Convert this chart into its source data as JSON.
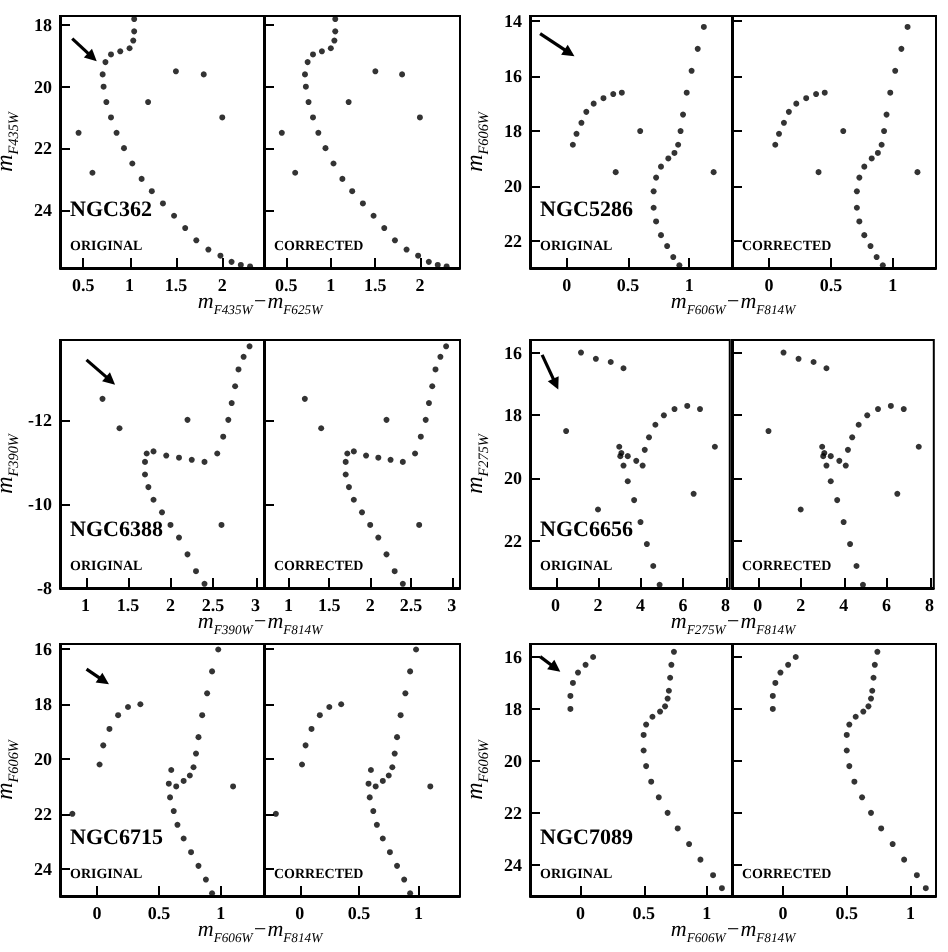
{
  "chart_data": [
    {
      "type": "scatter",
      "xlabel": "m$_{F435W}$−m$_{F625W}$",
      "ylabel": "m$_{F435W}$",
      "annotations": [
        "NGC362",
        "ORIGINAL"
      ],
      "marker": "circle",
      "xlim": [
        0.25,
        2.45
      ],
      "ylim": [
        25.9,
        17.7
      ],
      "xticks": [
        0.5,
        1,
        1.5,
        2
      ],
      "yticks": [
        18,
        20,
        22,
        24
      ],
      "series": [
        {
          "color": "#000000",
          "x": [
            1.05,
            1.05,
            1.04,
            1.0,
            0.9,
            0.8,
            0.74,
            0.71,
            0.72,
            0.75,
            0.8,
            0.86,
            0.94,
            1.03,
            1.13,
            1.24,
            1.36,
            1.48,
            1.6,
            1.72,
            1.85,
            1.98,
            2.1,
            2.2,
            2.3,
            1.5,
            1.8,
            0.45,
            0.6,
            1.2,
            2.0
          ],
          "values": [
            17.8,
            18.2,
            18.5,
            18.75,
            18.85,
            18.95,
            19.2,
            19.6,
            20.0,
            20.5,
            21.0,
            21.5,
            22.0,
            22.5,
            23.0,
            23.4,
            23.8,
            24.2,
            24.6,
            25.0,
            25.3,
            25.5,
            25.7,
            25.8,
            25.85,
            19.5,
            19.6,
            21.5,
            22.8,
            20.5,
            21.0
          ]
        }
      ]
    },
    {
      "type": "scatter",
      "annotations": [
        "CORRECTED"
      ],
      "marker": "circle",
      "tick_labels": "x",
      "xlim": [
        0.25,
        2.45
      ],
      "ylim": [
        25.9,
        17.7
      ],
      "xticks": [
        0.5,
        1,
        1.5,
        2
      ],
      "yticks": [
        18,
        20,
        22,
        24
      ],
      "series": [
        {
          "color": "#000000",
          "x": [
            1.05,
            1.05,
            1.04,
            1.0,
            0.9,
            0.8,
            0.74,
            0.71,
            0.72,
            0.75,
            0.8,
            0.86,
            0.94,
            1.03,
            1.13,
            1.24,
            1.36,
            1.48,
            1.6,
            1.72,
            1.85,
            1.98,
            2.1,
            2.2,
            2.3,
            1.5,
            1.8,
            0.45,
            0.6,
            1.2,
            2.0
          ],
          "values": [
            17.8,
            18.2,
            18.5,
            18.75,
            18.85,
            18.95,
            19.2,
            19.6,
            20.0,
            20.5,
            21.0,
            21.5,
            22.0,
            22.5,
            23.0,
            23.4,
            23.8,
            24.2,
            24.6,
            25.0,
            25.3,
            25.5,
            25.7,
            25.8,
            25.85,
            19.5,
            19.6,
            21.5,
            22.8,
            20.5,
            21.0
          ]
        }
      ]
    },
    {
      "type": "scatter",
      "xlabel": "m$_{F606W}$−m$_{F814W}$",
      "ylabel": "m$_{F606W}$",
      "annotations": [
        "NGC5286",
        "ORIGINAL"
      ],
      "marker": "circle",
      "xlim": [
        -0.3,
        1.35
      ],
      "ylim": [
        23,
        13.8
      ],
      "xticks": [
        0,
        0.5,
        1
      ],
      "yticks": [
        14,
        16,
        18,
        20,
        22
      ],
      "series": [
        {
          "color": "#000000",
          "x": [
            1.12,
            1.07,
            1.02,
            0.98,
            0.95,
            0.93,
            0.91,
            0.88,
            0.83,
            0.77,
            0.73,
            0.71,
            0.71,
            0.73,
            0.77,
            0.82,
            0.87,
            0.92,
            0.45,
            0.38,
            0.3,
            0.22,
            0.16,
            0.12,
            0.08,
            0.05,
            0.6,
            1.2,
            0.4
          ],
          "values": [
            14.2,
            15.0,
            15.8,
            16.6,
            17.4,
            18.0,
            18.5,
            18.8,
            19.0,
            19.3,
            19.7,
            20.2,
            20.8,
            21.3,
            21.8,
            22.2,
            22.6,
            22.9,
            16.6,
            16.65,
            16.8,
            17.0,
            17.3,
            17.7,
            18.1,
            18.5,
            18.0,
            19.5,
            19.5
          ]
        }
      ]
    },
    {
      "type": "scatter",
      "annotations": [
        "CORRECTED"
      ],
      "marker": "circle",
      "tick_labels": "x",
      "xlim": [
        -0.3,
        1.35
      ],
      "ylim": [
        23,
        13.8
      ],
      "xticks": [
        0,
        0.5,
        1
      ],
      "yticks": [
        14,
        16,
        18,
        20,
        22
      ],
      "series": [
        {
          "color": "#000000",
          "x": [
            1.12,
            1.07,
            1.02,
            0.98,
            0.95,
            0.93,
            0.91,
            0.88,
            0.83,
            0.77,
            0.73,
            0.71,
            0.71,
            0.73,
            0.77,
            0.82,
            0.87,
            0.92,
            0.45,
            0.38,
            0.3,
            0.22,
            0.16,
            0.12,
            0.08,
            0.05,
            0.6,
            1.2,
            0.4
          ],
          "values": [
            14.2,
            15.0,
            15.8,
            16.6,
            17.4,
            18.0,
            18.5,
            18.8,
            19.0,
            19.3,
            19.7,
            20.2,
            20.8,
            21.3,
            21.8,
            22.2,
            22.6,
            22.9,
            16.6,
            16.65,
            16.8,
            17.0,
            17.3,
            17.7,
            18.1,
            18.5,
            18.0,
            19.5,
            19.5
          ]
        }
      ]
    },
    {
      "type": "scatter",
      "xlabel": "m$_{F390W}$−m$_{F814W}$",
      "ylabel": "m$_{F390W}$",
      "annotations": [
        "NGC6388",
        "ORIGINAL"
      ],
      "marker": "circle",
      "xlim": [
        0.7,
        3.1
      ],
      "ylim": [
        -8,
        -13.9
      ],
      "xticks": [
        1,
        1.5,
        2,
        2.5,
        3
      ],
      "yticks": [
        -12,
        -10,
        -8
      ],
      "series": [
        {
          "color": "#000000",
          "x": [
            2.4,
            2.3,
            2.2,
            2.1,
            2.0,
            1.9,
            1.8,
            1.74,
            1.7,
            1.7,
            1.72,
            1.8,
            1.95,
            2.1,
            2.25,
            2.4,
            2.55,
            2.62,
            2.68,
            2.72,
            2.76,
            2.8,
            2.86,
            2.93,
            1.4,
            2.6,
            1.2,
            2.2
          ],
          "values": [
            -8.1,
            -8.4,
            -8.8,
            -9.2,
            -9.5,
            -9.8,
            -10.1,
            -10.4,
            -10.7,
            -11.0,
            -11.2,
            -11.25,
            -11.15,
            -11.1,
            -11.05,
            -11.0,
            -11.2,
            -11.6,
            -12.0,
            -12.4,
            -12.8,
            -13.2,
            -13.5,
            -13.75,
            -11.8,
            -9.5,
            -12.5,
            -12.0
          ]
        }
      ]
    },
    {
      "type": "scatter",
      "annotations": [
        "CORRECTED"
      ],
      "marker": "circle",
      "tick_labels": "x",
      "xlim": [
        0.7,
        3.1
      ],
      "ylim": [
        -8,
        -13.9
      ],
      "xticks": [
        1,
        1.5,
        2,
        2.5,
        3
      ],
      "yticks": [
        -12,
        -10,
        -8
      ],
      "series": [
        {
          "color": "#000000",
          "x": [
            2.4,
            2.3,
            2.2,
            2.1,
            2.0,
            1.9,
            1.8,
            1.74,
            1.7,
            1.7,
            1.72,
            1.8,
            1.95,
            2.1,
            2.25,
            2.4,
            2.55,
            2.62,
            2.68,
            2.72,
            2.76,
            2.8,
            2.86,
            2.93,
            1.4,
            2.6,
            1.2,
            2.2
          ],
          "values": [
            -8.1,
            -8.4,
            -8.8,
            -9.2,
            -9.5,
            -9.8,
            -10.1,
            -10.4,
            -10.7,
            -11.0,
            -11.2,
            -11.25,
            -11.15,
            -11.1,
            -11.05,
            -11.0,
            -11.2,
            -11.6,
            -12.0,
            -12.4,
            -12.8,
            -13.2,
            -13.5,
            -13.75,
            -11.8,
            -9.5,
            -12.5,
            -12.0
          ]
        }
      ]
    },
    {
      "type": "scatter",
      "xlabel": "m$_{F275W}$−m$_{F814W}$",
      "ylabel": "m$_{F275W}$",
      "annotations": [
        "NGC6656",
        "ORIGINAL"
      ],
      "marker": "circle",
      "xlim": [
        -1.2,
        8.2
      ],
      "ylim": [
        23.5,
        15.6
      ],
      "xticks": [
        0,
        2,
        4,
        6,
        8
      ],
      "yticks": [
        16,
        18,
        20,
        22
      ],
      "series": [
        {
          "color": "#000000",
          "x": [
            4.9,
            4.6,
            4.3,
            4.0,
            3.7,
            3.4,
            3.2,
            3.05,
            3.0,
            3.1,
            3.4,
            3.8,
            4.1,
            4.2,
            4.4,
            4.7,
            5.1,
            5.6,
            6.2,
            6.8,
            1.2,
            1.9,
            2.6,
            3.2,
            6.5,
            7.5,
            0.5,
            2.0
          ],
          "values": [
            23.4,
            22.8,
            22.1,
            21.4,
            20.7,
            20.1,
            19.6,
            19.3,
            19.0,
            19.2,
            19.3,
            19.45,
            19.6,
            19.1,
            18.7,
            18.3,
            18.0,
            17.8,
            17.7,
            17.8,
            16.0,
            16.2,
            16.3,
            16.5,
            20.5,
            19.0,
            18.5,
            21.0
          ]
        }
      ]
    },
    {
      "type": "scatter",
      "annotations": [
        "CORRECTED"
      ],
      "marker": "circle",
      "tick_labels": "x",
      "xlim": [
        -1.2,
        8.2
      ],
      "ylim": [
        23.5,
        15.6
      ],
      "xticks": [
        0,
        2,
        4,
        6,
        8
      ],
      "yticks": [
        16,
        18,
        20,
        22
      ],
      "series": [
        {
          "color": "#000000",
          "x": [
            4.9,
            4.6,
            4.3,
            4.0,
            3.7,
            3.4,
            3.2,
            3.05,
            3.0,
            3.1,
            3.4,
            3.8,
            4.1,
            4.2,
            4.4,
            4.7,
            5.1,
            5.6,
            6.2,
            6.8,
            1.2,
            1.9,
            2.6,
            3.2,
            6.5,
            7.5,
            0.5,
            2.0
          ],
          "values": [
            23.4,
            22.8,
            22.1,
            21.4,
            20.7,
            20.1,
            19.6,
            19.3,
            19.0,
            19.2,
            19.3,
            19.45,
            19.6,
            19.1,
            18.7,
            18.3,
            18.0,
            17.8,
            17.7,
            17.8,
            16.0,
            16.2,
            16.3,
            16.5,
            20.5,
            19.0,
            18.5,
            21.0
          ]
        }
      ]
    },
    {
      "type": "scatter",
      "xlabel": "m$_{F606W}$−m$_{F814W}$",
      "ylabel": "m$_{F606W}$",
      "annotations": [
        "NGC6715",
        "ORIGINAL"
      ],
      "marker": "circle",
      "xlim": [
        -0.3,
        1.35
      ],
      "ylim": [
        25,
        15.8
      ],
      "xticks": [
        0,
        0.5,
        1
      ],
      "yticks": [
        16,
        18,
        20,
        22,
        24
      ],
      "series": [
        {
          "color": "#000000",
          "x": [
            0.98,
            0.93,
            0.89,
            0.85,
            0.82,
            0.8,
            0.78,
            0.75,
            0.7,
            0.64,
            0.6,
            0.58,
            0.59,
            0.62,
            0.65,
            0.7,
            0.76,
            0.82,
            0.88,
            0.93,
            0.35,
            0.25,
            0.17,
            0.1,
            0.05,
            0.02,
            -0.2,
            1.1
          ],
          "values": [
            16.0,
            16.8,
            17.6,
            18.4,
            19.2,
            19.8,
            20.3,
            20.6,
            20.8,
            21.0,
            20.4,
            20.9,
            21.4,
            21.9,
            22.4,
            22.9,
            23.4,
            23.9,
            24.4,
            24.9,
            18.0,
            18.1,
            18.4,
            18.9,
            19.5,
            20.2,
            22.0,
            21.0
          ]
        }
      ]
    },
    {
      "type": "scatter",
      "annotations": [
        "CORRECTED"
      ],
      "marker": "circle",
      "tick_labels": "x",
      "xlim": [
        -0.3,
        1.35
      ],
      "ylim": [
        25,
        15.8
      ],
      "xticks": [
        0,
        0.5,
        1
      ],
      "yticks": [
        16,
        18,
        20,
        22,
        24
      ],
      "series": [
        {
          "color": "#000000",
          "x": [
            0.98,
            0.93,
            0.89,
            0.85,
            0.82,
            0.8,
            0.78,
            0.75,
            0.7,
            0.64,
            0.6,
            0.58,
            0.59,
            0.62,
            0.65,
            0.7,
            0.76,
            0.82,
            0.88,
            0.93,
            0.35,
            0.25,
            0.17,
            0.1,
            0.05,
            0.02,
            -0.2,
            1.1
          ],
          "values": [
            16.0,
            16.8,
            17.6,
            18.4,
            19.2,
            19.8,
            20.3,
            20.6,
            20.8,
            21.0,
            20.4,
            20.9,
            21.4,
            21.9,
            22.4,
            22.9,
            23.4,
            23.9,
            24.4,
            24.9,
            18.0,
            18.1,
            18.4,
            18.9,
            19.5,
            20.2,
            22.0,
            21.0
          ]
        }
      ]
    },
    {
      "type": "scatter",
      "xlabel": "m$_{F606W}$−m$_{F814W}$",
      "ylabel": "m$_{F606W}$",
      "annotations": [
        "NGC7089",
        "ORIGINAL"
      ],
      "marker": "circle",
      "xlim": [
        -0.4,
        1.2
      ],
      "ylim": [
        25.2,
        15.5
      ],
      "xticks": [
        0,
        0.5,
        1
      ],
      "yticks": [
        16,
        18,
        20,
        22,
        24
      ],
      "series": [
        {
          "color": "#000000",
          "x": [
            0.74,
            0.72,
            0.71,
            0.7,
            0.69,
            0.67,
            0.63,
            0.57,
            0.52,
            0.5,
            0.5,
            0.52,
            0.56,
            0.62,
            0.69,
            0.77,
            0.86,
            0.95,
            1.05,
            1.12,
            0.1,
            0.04,
            -0.02,
            -0.06,
            -0.08,
            -0.08
          ],
          "values": [
            15.8,
            16.3,
            16.8,
            17.3,
            17.6,
            17.9,
            18.1,
            18.3,
            18.6,
            19.0,
            19.6,
            20.2,
            20.8,
            21.4,
            22.0,
            22.6,
            23.2,
            23.8,
            24.4,
            24.9,
            16.0,
            16.3,
            16.6,
            17.0,
            17.5,
            18.0
          ]
        }
      ]
    },
    {
      "type": "scatter",
      "annotations": [
        "CORRECTED"
      ],
      "marker": "circle",
      "tick_labels": "x",
      "xlim": [
        -0.4,
        1.2
      ],
      "ylim": [
        25.2,
        15.5
      ],
      "xticks": [
        0,
        0.5,
        1
      ],
      "yticks": [
        16,
        18,
        20,
        22,
        24
      ],
      "series": [
        {
          "color": "#000000",
          "x": [
            0.74,
            0.72,
            0.71,
            0.7,
            0.69,
            0.67,
            0.63,
            0.57,
            0.52,
            0.5,
            0.5,
            0.52,
            0.56,
            0.62,
            0.69,
            0.77,
            0.86,
            0.95,
            1.05,
            1.12,
            0.1,
            0.04,
            -0.02,
            -0.06,
            -0.08,
            -0.08
          ],
          "values": [
            15.8,
            16.3,
            16.8,
            17.3,
            17.6,
            17.9,
            18.1,
            18.3,
            18.6,
            19.0,
            19.6,
            20.2,
            20.8,
            21.4,
            22.0,
            22.6,
            23.2,
            23.8,
            24.4,
            24.9,
            16.0,
            16.3,
            16.6,
            17.0,
            17.5,
            18.0
          ]
        }
      ]
    }
  ]
}
